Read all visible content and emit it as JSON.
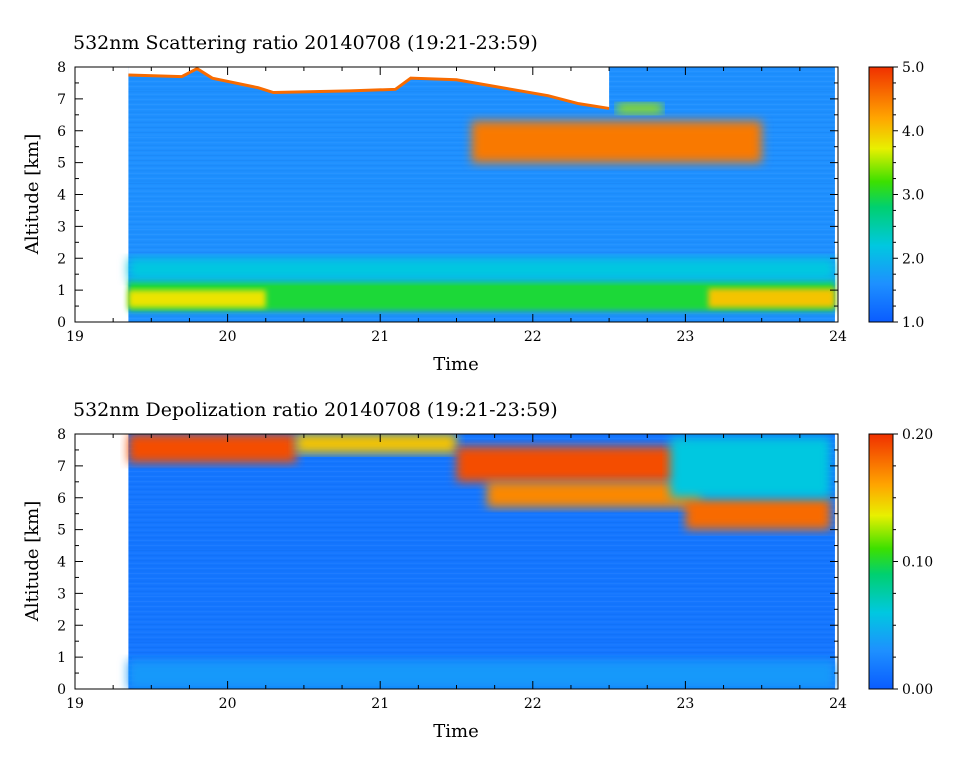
{
  "chart_data": [
    {
      "type": "heatmap",
      "title": "532nm Scattering ratio  20140708 (19:21-23:59)",
      "xlabel": "Time",
      "ylabel": "Altitude [km]",
      "xlim": [
        19,
        24
      ],
      "ylim": [
        0,
        8
      ],
      "x_ticks": [
        "19",
        "20",
        "21",
        "22",
        "23",
        "24"
      ],
      "y_ticks": [
        "0",
        "1",
        "2",
        "3",
        "4",
        "5",
        "6",
        "7",
        "8"
      ],
      "data_start": 19.35,
      "data_end": 23.98,
      "colorbar": {
        "range": [
          1.0,
          5.0
        ],
        "ticks": [
          "1.0",
          "2.0",
          "3.0",
          "4.0",
          "5.0"
        ]
      },
      "background_value": 1.6,
      "cloud_top": [
        [
          19.35,
          7.75
        ],
        [
          19.7,
          7.7
        ],
        [
          19.8,
          7.95
        ],
        [
          19.9,
          7.65
        ],
        [
          20.2,
          7.35
        ],
        [
          20.3,
          7.2
        ],
        [
          20.8,
          7.25
        ],
        [
          21.1,
          7.3
        ],
        [
          21.2,
          7.65
        ],
        [
          21.5,
          7.6
        ],
        [
          21.8,
          7.35
        ],
        [
          22.1,
          7.1
        ],
        [
          22.3,
          6.85
        ],
        [
          22.5,
          6.7
        ]
      ],
      "layers": [
        {
          "label": "aerosol_layer",
          "x_start": 19.35,
          "x_end": 23.98,
          "alt_bottom": 0.35,
          "alt_top": 1.3,
          "value": 3.0
        },
        {
          "label": "aerosol_core",
          "x_start": 19.35,
          "x_end": 20.25,
          "alt_bottom": 0.45,
          "alt_top": 1.0,
          "value": 3.8
        },
        {
          "label": "aerosol_core",
          "x_start": 23.15,
          "x_end": 23.98,
          "alt_bottom": 0.45,
          "alt_top": 1.05,
          "value": 4.0
        },
        {
          "label": "residual_layer",
          "x_start": 19.35,
          "x_end": 23.98,
          "alt_bottom": 1.3,
          "alt_top": 2.0,
          "value": 2.2
        },
        {
          "label": "cloud_base_edge",
          "x_start": 21.6,
          "x_end": 23.5,
          "alt_bottom": 5.0,
          "alt_top": 6.3,
          "value": 4.5
        },
        {
          "label": "cloud_fragment",
          "x_start": 22.55,
          "x_end": 22.85,
          "alt_bottom": 6.55,
          "alt_top": 6.85,
          "value": 3.5
        }
      ]
    },
    {
      "type": "heatmap",
      "title": "532nm Depolization ratio  20140708 (19:21-23:59)",
      "xlabel": "Time",
      "ylabel": "Altitude [km]",
      "xlim": [
        19,
        24
      ],
      "ylim": [
        0,
        8
      ],
      "x_ticks": [
        "19",
        "20",
        "21",
        "22",
        "23",
        "24"
      ],
      "y_ticks": [
        "0",
        "1",
        "2",
        "3",
        "4",
        "5",
        "6",
        "7",
        "8"
      ],
      "data_start": 19.35,
      "data_end": 23.98,
      "colorbar": {
        "range": [
          0.0,
          0.2
        ],
        "ticks": [
          "0.00",
          "0.10",
          "0.20"
        ]
      },
      "background_value": 0.015,
      "layers": [
        {
          "label": "near_surface",
          "x_start": 19.35,
          "x_end": 23.98,
          "alt_bottom": 0.0,
          "alt_top": 0.9,
          "value": 0.035
        },
        {
          "label": "cloud_top_band",
          "x_start": 19.35,
          "x_end": 20.45,
          "alt_bottom": 7.1,
          "alt_top": 8.0,
          "value": 0.19
        },
        {
          "label": "cloud_top_band",
          "x_start": 20.45,
          "x_end": 21.5,
          "alt_bottom": 7.4,
          "alt_top": 8.0,
          "value": 0.15
        },
        {
          "label": "cloud_band",
          "x_start": 21.5,
          "x_end": 23.0,
          "alt_bottom": 6.5,
          "alt_top": 7.6,
          "value": 0.19
        },
        {
          "label": "cloud_band",
          "x_start": 21.7,
          "x_end": 23.1,
          "alt_bottom": 5.7,
          "alt_top": 6.5,
          "value": 0.17
        },
        {
          "label": "cloud_band",
          "x_start": 23.0,
          "x_end": 23.95,
          "alt_bottom": 5.0,
          "alt_top": 6.0,
          "value": 0.18
        },
        {
          "label": "cloud_band",
          "x_start": 22.9,
          "x_end": 23.95,
          "alt_bottom": 6.0,
          "alt_top": 7.9,
          "value": 0.06
        }
      ]
    }
  ]
}
